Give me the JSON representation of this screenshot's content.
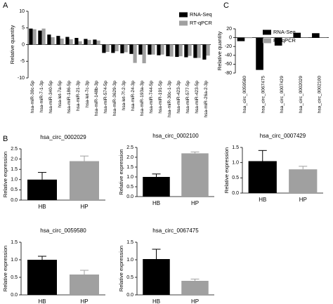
{
  "chart_data": [
    {
      "type": "bar",
      "panel": "A",
      "ylabel": "Relative quantity",
      "categories": [
        "hsa-miR-30c-5p",
        "hsa-miR-7-1-3p",
        "hsa-miR-340-5p",
        "hsa-let-7a-5p",
        "hsa-miR-186-5p",
        "hsa-miR-21-3p",
        "hsa-let-7c-3p",
        "hsa-miR-148b-3p",
        "hsa-miR-574-5p",
        "hsa-miR-3629-3p",
        "hsa-let-7f-2-3p",
        "hsa-miR-24-3p",
        "hsa-miR-193a-3p",
        "hsa-miR-744-5p",
        "hsa-miR-191-5p",
        "hsa-miR-30c-1-3p",
        "hsa-miR-423-3p",
        "hsa-miR-577-5p",
        "hsa-miR-423-5p",
        "hsa-miR-26a-2-3p"
      ],
      "series": [
        {
          "name": "RNA-Seq",
          "color": "#000000",
          "values": [
            4.8,
            4.2,
            3.0,
            2.6,
            2.3,
            2.0,
            1.7,
            1.5,
            -2.5,
            -2.5,
            -2.6,
            -2.8,
            -3.0,
            -3.0,
            -3.2,
            -3.5,
            -3.7,
            -3.8,
            -4.0,
            -4.5
          ]
        },
        {
          "name": "RT-qPCR",
          "color": "#a0a0a0",
          "values": [
            4.6,
            4.8,
            2.2,
            1.8,
            1.6,
            1.0,
            1.4,
            1.2,
            -2.2,
            -2.0,
            -2.3,
            -5.5,
            -5.6,
            -3.0,
            -3.0,
            -3.6,
            -3.5,
            -3.4,
            -4.0,
            -3.3
          ]
        }
      ],
      "ylim": [
        -10,
        10
      ],
      "yticks": [
        10,
        5,
        0,
        -5,
        -10
      ],
      "legend": "upper right"
    },
    {
      "type": "bar",
      "panel": "C",
      "ylabel": "Relative quantity",
      "categories": [
        "hsa_circ_0059580",
        "hsa_circ_0067475",
        "hsa_circ_0007429",
        "hsa_circ_0002029",
        "hsa_circ_0002100"
      ],
      "series": [
        {
          "name": "RNA-Seq",
          "color": "#000000",
          "values": [
            -8,
            -73,
            -18,
            11,
            10
          ]
        },
        {
          "name": "RT-qPCR",
          "color": "#a0a0a0",
          "values": [
            -1,
            -0.5,
            -1,
            1,
            1
          ]
        }
      ],
      "ylim": [
        -80,
        20
      ],
      "yticks": [
        20,
        0,
        -20,
        -40,
        -60,
        -80
      ],
      "legend": "upper right"
    },
    {
      "type": "bar",
      "panel": "B",
      "title": "hsa_circ_0002029",
      "ylabel": "Relative expression",
      "categories": [
        "HB",
        "HP"
      ],
      "values": [
        1.0,
        1.9
      ],
      "errors": [
        0.35,
        0.25
      ],
      "colors": [
        "#000000",
        "#a0a0a0"
      ],
      "ylim": [
        0,
        2.5
      ],
      "yticks": [
        {
          "value": 0,
          "label": "0.0"
        },
        0.5,
        {
          "value": 1,
          "label": "1.0"
        },
        1.5,
        {
          "value": 2,
          "label": "2.0"
        },
        2.5
      ]
    },
    {
      "type": "bar",
      "title": "hsa_circ_0002100",
      "ylabel": "Relative expression",
      "categories": [
        "HB",
        "HP"
      ],
      "values": [
        1.0,
        2.2
      ],
      "errors": [
        0.15,
        0.07
      ],
      "colors": [
        "#000000",
        "#a0a0a0"
      ],
      "ylim": [
        0,
        2.5
      ],
      "yticks": [
        {
          "value": 0,
          "label": "0.0"
        },
        0.5,
        {
          "value": 1,
          "label": "1.0"
        },
        1.5,
        {
          "value": 2,
          "label": "2.0"
        },
        2.5
      ]
    },
    {
      "type": "bar",
      "title": "hsa_circ_0007429",
      "ylabel": "Relative expression",
      "categories": [
        "HB",
        "HP"
      ],
      "values": [
        1.05,
        0.78
      ],
      "errors": [
        0.35,
        0.1
      ],
      "colors": [
        "#000000",
        "#a0a0a0"
      ],
      "ylim": [
        0,
        1.5
      ],
      "yticks": [
        {
          "value": 0,
          "label": "0.0"
        },
        0.5,
        {
          "value": 1,
          "label": "1.0"
        },
        1.5
      ]
    },
    {
      "type": "bar",
      "title": "hsa_circ_0059580",
      "ylabel": "Relative expression",
      "categories": [
        "HB",
        "HP"
      ],
      "values": [
        1.0,
        0.58
      ],
      "errors": [
        0.1,
        0.12
      ],
      "colors": [
        "#000000",
        "#a0a0a0"
      ],
      "ylim": [
        0,
        1.5
      ],
      "yticks": [
        {
          "value": 0,
          "label": "0.0"
        },
        0.5,
        {
          "value": 1,
          "label": "1.0"
        },
        1.5
      ]
    },
    {
      "type": "bar",
      "title": "hsa_circ_0067475",
      "ylabel": "Relative expression",
      "categories": [
        "HB",
        "HP"
      ],
      "values": [
        1.02,
        0.4
      ],
      "errors": [
        0.28,
        0.05
      ],
      "colors": [
        "#000000",
        "#a0a0a0"
      ],
      "ylim": [
        0,
        1.5
      ],
      "yticks": [
        {
          "value": 0,
          "label": "0.0"
        },
        0.5,
        {
          "value": 1,
          "label": "1.0"
        },
        1.5
      ]
    }
  ]
}
